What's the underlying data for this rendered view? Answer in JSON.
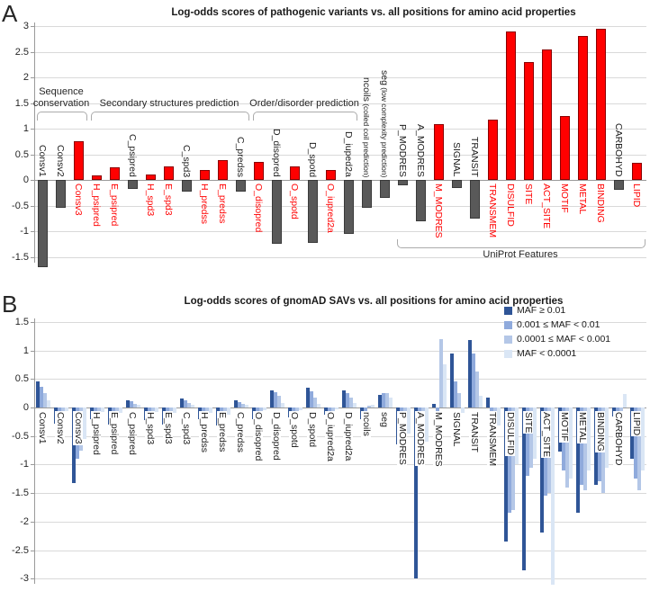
{
  "panels": {
    "a_letter": "A",
    "b_letter": "B"
  },
  "colors": {
    "red_bar": "#ff0000",
    "red_border": "#8b0000",
    "red_label": "#ff0000",
    "gray_bar": "#595959",
    "gray_border": "#3a3a3a",
    "black_label": "#1a1a1a",
    "grid": "#d9d9d9",
    "axis": "#9a9a9a",
    "maf_series": [
      "#2f5597",
      "#8faadc",
      "#b4c7e7",
      "#dae6f5"
    ]
  },
  "chart_data": [
    {
      "id": "A",
      "type": "bar",
      "title": "Log-odds scores of pathogenic variants vs. all positions for amino acid properties",
      "ylabel": "",
      "ylim": [
        -1.75,
        3.05
      ],
      "y_ticks": [
        3,
        2.5,
        2,
        1.5,
        1,
        0.5,
        0,
        -0.5,
        -1,
        -1.5
      ],
      "grid": true,
      "color_rule": "positive bars red with red labels, negative bars dark gray with black labels",
      "categories": [
        {
          "name": "Consv1"
        },
        {
          "name": "Consv2"
        },
        {
          "name": "Consv3"
        },
        {
          "name": "H_psipred"
        },
        {
          "name": "E_psipred"
        },
        {
          "name": "C_psipred"
        },
        {
          "name": "H_spd3"
        },
        {
          "name": "E_spd3"
        },
        {
          "name": "C_spd3"
        },
        {
          "name": "H_predss"
        },
        {
          "name": "E_predss"
        },
        {
          "name": "C_predss"
        },
        {
          "name": "O_disopred"
        },
        {
          "name": "D_disopred"
        },
        {
          "name": "O_spotd"
        },
        {
          "name": "D_spotd"
        },
        {
          "name": "O_iupred2a"
        },
        {
          "name": "D_iuped2a"
        },
        {
          "name": "ncoils",
          "note": " (coiled coil prediction)"
        },
        {
          "name": "seg",
          "note": " (low complexity prediction)"
        },
        {
          "name": "P_MODRES"
        },
        {
          "name": "A_MODRES"
        },
        {
          "name": "M_MODRES"
        },
        {
          "name": "SIGNAL"
        },
        {
          "name": "TRANSIT"
        },
        {
          "name": "TRANSMEM"
        },
        {
          "name": "DISULFID"
        },
        {
          "name": "SITE"
        },
        {
          "name": "ACT_SITE"
        },
        {
          "name": "MOTIF"
        },
        {
          "name": "METAL"
        },
        {
          "name": "BINDING"
        },
        {
          "name": "CARBOHYD"
        },
        {
          "name": "LIPID"
        }
      ],
      "values": [
        -1.7,
        -0.55,
        0.75,
        0.08,
        0.24,
        -0.18,
        0.1,
        0.26,
        -0.22,
        0.2,
        0.38,
        -0.23,
        0.35,
        -1.25,
        0.27,
        -1.22,
        0.2,
        -1.05,
        -0.55,
        -0.35,
        -0.1,
        -0.8,
        1.08,
        -0.15,
        -0.75,
        1.18,
        2.9,
        2.3,
        2.55,
        1.25,
        2.8,
        2.95,
        -0.2,
        0.33
      ],
      "groups": [
        {
          "label": "Sequence conservation",
          "lines": [
            "Sequence",
            "conservation"
          ],
          "from": 0,
          "to": 2,
          "side": "top"
        },
        {
          "label": "Secondary structures prediction",
          "lines": [
            "Secondary structures prediction"
          ],
          "from": 3,
          "to": 11,
          "side": "top"
        },
        {
          "label": "Order/disorder prediction",
          "lines": [
            "Order/disorder prediction"
          ],
          "from": 12,
          "to": 17,
          "side": "top"
        },
        {
          "label": "UniProt Features",
          "lines": [
            "UniProt Features"
          ],
          "from": 20,
          "to": 33,
          "side": "bottom"
        }
      ]
    },
    {
      "id": "B",
      "type": "grouped-bar",
      "title": "Log-odds scores of gnomAD SAVs vs. all positions for amino acid properties",
      "ylabel": "",
      "ylim": [
        -3.25,
        1.5
      ],
      "y_ticks": [
        1.5,
        1,
        0.5,
        0,
        -0.5,
        -1,
        -1.5,
        -2,
        -2.5,
        -3
      ],
      "grid": true,
      "legend_position": "top-right",
      "categories": [
        "Consv1",
        "Consv2",
        "Consv3",
        "H_psipred",
        "E_psipred",
        "C_psipred",
        "H_spd3",
        "E_spd3",
        "C_spd3",
        "H_predss",
        "E_predss",
        "C_predss",
        "O_disopred",
        "D_disopred",
        "O_spotd",
        "D_spotd",
        "O_iupred2a",
        "D_iupred2a",
        "ncoils",
        "seg",
        "P_MODRES",
        "A_MODRES",
        "M_MODRES",
        "SIGNAL",
        "TRANSIT",
        "TRANSMEM",
        "DISULFID",
        "SITE",
        "ACT_SITE",
        "MOTIF",
        "METAL",
        "BINDING",
        "CARBOHYD",
        "LIPID"
      ],
      "series": [
        {
          "name": "MAF ≥ 0.01",
          "color": "#2f5597",
          "values": [
            0.46,
            -0.28,
            -1.33,
            -0.2,
            -0.3,
            0.13,
            -0.22,
            -0.3,
            0.15,
            -0.2,
            -0.32,
            0.12,
            -0.2,
            0.3,
            -0.18,
            0.35,
            -0.12,
            0.3,
            -0.2,
            0.22,
            -0.65,
            -3.0,
            0.07,
            0.95,
            1.18,
            0.17,
            -2.35,
            -2.85,
            -2.2,
            -0.77,
            -1.85,
            -1.35,
            -0.15,
            -0.9
          ]
        },
        {
          "name": "0.001 ≤ MAF < 0.01",
          "color": "#8faadc",
          "values": [
            0.36,
            -0.13,
            -0.9,
            -0.15,
            -0.22,
            0.11,
            -0.17,
            -0.23,
            0.12,
            -0.16,
            -0.25,
            0.1,
            -0.15,
            0.27,
            -0.13,
            0.28,
            -0.09,
            0.25,
            -0.07,
            0.26,
            -0.6,
            -0.75,
            -0.2,
            0.46,
            0.95,
            -0.12,
            -1.85,
            -1.2,
            -1.55,
            -1.1,
            -1.35,
            -1.3,
            -0.2,
            -1.25
          ]
        },
        {
          "name": "0.0001 ≤ MAF < 0.001",
          "color": "#b4c7e7",
          "values": [
            0.25,
            -0.1,
            -0.75,
            -0.12,
            -0.16,
            0.07,
            -0.12,
            -0.16,
            0.08,
            -0.13,
            -0.18,
            0.07,
            -0.1,
            0.2,
            -0.08,
            0.18,
            -0.06,
            0.17,
            0.03,
            0.25,
            -0.5,
            -0.7,
            1.2,
            0.26,
            0.63,
            -0.22,
            -1.8,
            -1.05,
            -1.5,
            -1.4,
            -1.45,
            -1.5,
            -0.1,
            -1.45
          ]
        },
        {
          "name": "MAF < 0.0001",
          "color": "#dae6f5",
          "values": [
            0.13,
            -0.07,
            -0.55,
            -0.08,
            -0.1,
            0.04,
            -0.08,
            -0.1,
            0.05,
            -0.1,
            -0.12,
            0.05,
            -0.05,
            0.08,
            -0.04,
            0.07,
            -0.03,
            0.08,
            0.05,
            0.17,
            -0.45,
            -0.6,
            0.75,
            -0.1,
            0.2,
            -0.32,
            -1.0,
            -0.9,
            -3.1,
            -1.25,
            -1.1,
            -1.05,
            0.23,
            -1.1
          ]
        }
      ]
    }
  ]
}
